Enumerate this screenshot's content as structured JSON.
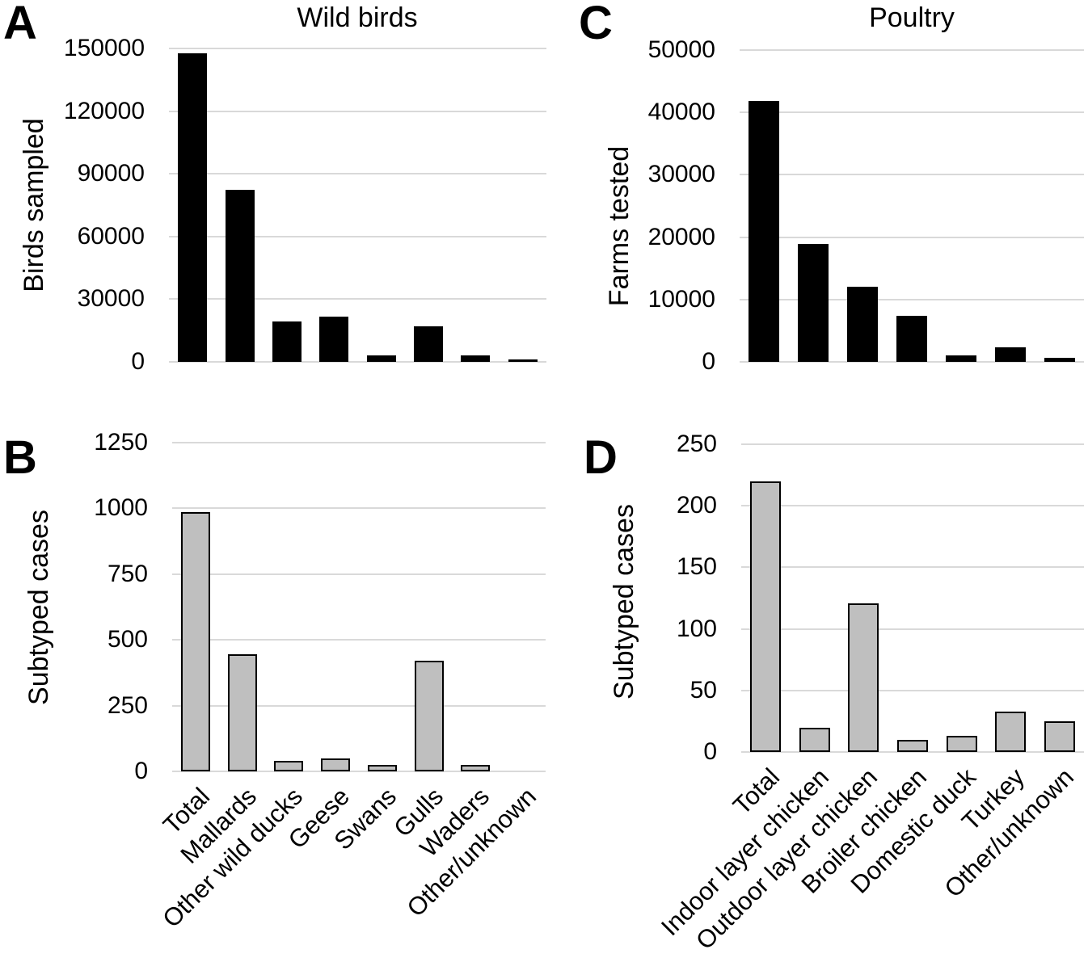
{
  "figure": {
    "background": "#ffffff",
    "grid_color": "#d9d9d9"
  },
  "chart_data": [
    {
      "panel": "A",
      "type": "bar",
      "title": "Wild birds",
      "xlabel": "",
      "ylabel": "Birds sampled",
      "ylim": [
        0,
        150000
      ],
      "yticks": [
        0,
        30000,
        60000,
        90000,
        120000,
        150000
      ],
      "grid": true,
      "legend": false,
      "bar_fill": "#000000",
      "bar_border": "none",
      "categories": [
        "Total",
        "Mallards",
        "Other wild ducks",
        "Geese",
        "Swans",
        "Gulls",
        "Waders",
        "Other/unknown"
      ],
      "show_category_labels": false,
      "values": [
        147500,
        82500,
        19500,
        21500,
        3000,
        17000,
        3000,
        1200
      ]
    },
    {
      "panel": "B",
      "type": "bar",
      "title": "",
      "xlabel": "",
      "ylabel": "Subtyped cases",
      "ylim": [
        0,
        1250
      ],
      "yticks": [
        0,
        250,
        500,
        750,
        1000,
        1250
      ],
      "grid": true,
      "legend": false,
      "bar_fill": "#bfbfbf",
      "bar_border": "#000000",
      "categories": [
        "Total",
        "Mallards",
        "Other wild ducks",
        "Geese",
        "Swans",
        "Gulls",
        "Waders",
        "Other/unknown"
      ],
      "show_category_labels": true,
      "values": [
        985,
        445,
        40,
        48,
        25,
        420,
        25,
        0
      ]
    },
    {
      "panel": "C",
      "type": "bar",
      "title": "Poultry",
      "xlabel": "",
      "ylabel": "Farms tested",
      "ylim": [
        0,
        50000
      ],
      "yticks": [
        0,
        10000,
        20000,
        30000,
        40000,
        50000
      ],
      "grid": true,
      "legend": false,
      "bar_fill": "#000000",
      "bar_border": "none",
      "categories": [
        "Total",
        "Indoor layer chicken",
        "Outdoor layer chicken",
        "Broiler chicken",
        "Domestic duck",
        "Turkey",
        "Other/unknown"
      ],
      "show_category_labels": false,
      "values": [
        41900,
        18900,
        12000,
        7400,
        1000,
        2300,
        700
      ]
    },
    {
      "panel": "D",
      "type": "bar",
      "title": "",
      "xlabel": "",
      "ylabel": "Subtyped cases",
      "ylim": [
        0,
        250
      ],
      "yticks": [
        0,
        50,
        100,
        150,
        200,
        250
      ],
      "grid": true,
      "legend": false,
      "bar_fill": "#bfbfbf",
      "bar_border": "#000000",
      "categories": [
        "Total",
        "Indoor layer chicken",
        "Outdoor layer chicken",
        "Broiler chicken",
        "Domestic duck",
        "Turkey",
        "Other/unknown"
      ],
      "show_category_labels": true,
      "values": [
        220,
        20,
        121,
        10,
        13,
        33,
        25
      ]
    }
  ]
}
